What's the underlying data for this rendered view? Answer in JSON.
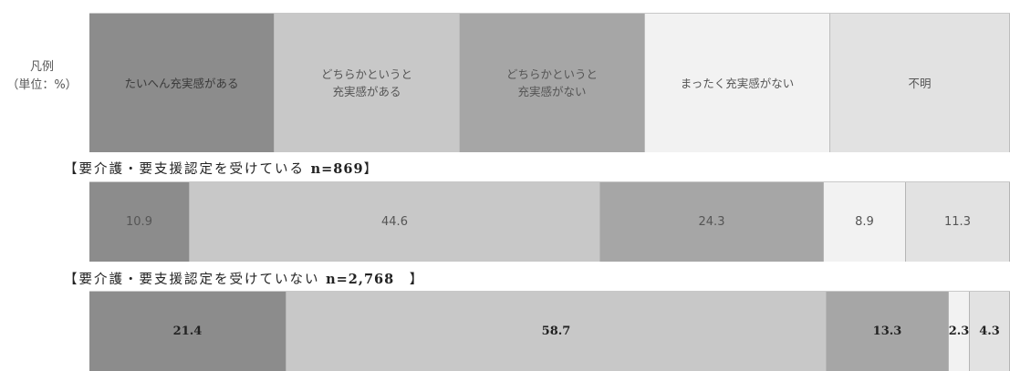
{
  "chart_data": {
    "type": "bar",
    "orientation": "horizontal-stacked-100",
    "unit": "%",
    "legend": {
      "title_lines": [
        "凡例",
        "（単位：%）"
      ],
      "items": [
        {
          "lines": [
            "たいへん充実感がある"
          ],
          "color": "#8c8c8c"
        },
        {
          "lines": [
            "どちらかというと",
            "充実感がある"
          ],
          "color": "#c8c8c8"
        },
        {
          "lines": [
            "どちらかというと",
            "充実感がない"
          ],
          "color": "#a6a6a6"
        },
        {
          "lines": [
            "まったく充実感がない"
          ],
          "color": "#f2f2f2"
        },
        {
          "lines": [
            "不明"
          ],
          "color": "#e2e2e2"
        }
      ]
    },
    "categories": [
      "たいへん充実感がある",
      "どちらかというと充実感がある",
      "どちらかというと充実感がない",
      "まったく充実感がない",
      "不明"
    ],
    "series": [
      {
        "name": "【要介護・要支援認定を受けている n=869】",
        "label_prefix": "【要介護・要支援認定を受けている ",
        "label_n": "n=869",
        "label_suffix": "】",
        "values": [
          10.9,
          44.6,
          24.3,
          8.9,
          11.3
        ],
        "labels": [
          "10.9",
          "44.6",
          "24.3",
          "8.9",
          "11.3"
        ]
      },
      {
        "name": "【要介護・要支援認定を受けていない n=2,768 】",
        "label_prefix": "【要介護・要支援認定を受けていない ",
        "label_n": "n=2,768",
        "label_suffix": "　】",
        "values": [
          21.4,
          58.7,
          13.3,
          2.3,
          4.3
        ],
        "labels": [
          "21.4",
          "58.7",
          "13.3",
          "2.3",
          "4.3"
        ]
      }
    ],
    "xlim": [
      0,
      100
    ]
  }
}
